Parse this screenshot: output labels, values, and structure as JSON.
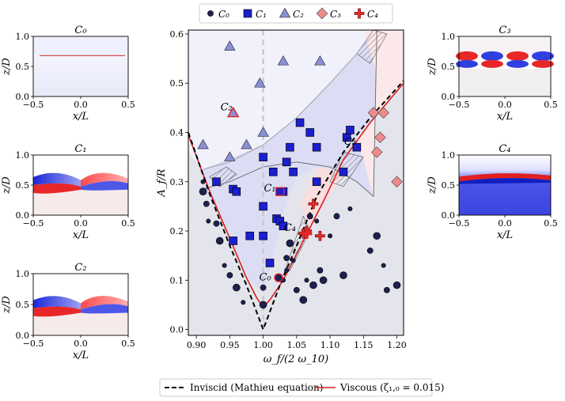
{
  "chart_data": {
    "type": "scatter",
    "main": {
      "xlabel": "ω_f/(2 ω_10)",
      "ylabel": "A_f/R",
      "xlim": [
        0.888,
        1.21
      ],
      "ylim": [
        -0.012,
        0.608
      ],
      "xticks": [
        0.9,
        0.95,
        1.0,
        1.05,
        1.1,
        1.15,
        1.2
      ],
      "xtick_labels": [
        "0.90",
        "0.95",
        "1.00",
        "1.05",
        "1.10",
        "1.15",
        "1.20"
      ],
      "yticks": [
        0.0,
        0.1,
        0.2,
        0.3,
        0.4,
        0.5,
        0.6
      ],
      "ytick_labels": [
        "0.0",
        "0.1",
        "0.2",
        "0.3",
        "0.4",
        "0.5",
        "0.6"
      ],
      "vline_x": 1.0,
      "inviscid_curve": [
        [
          0.888,
          0.4
        ],
        [
          0.92,
          0.275
        ],
        [
          0.95,
          0.17
        ],
        [
          0.975,
          0.09
        ],
        [
          1.0,
          0.0
        ],
        [
          1.025,
          0.09
        ],
        [
          1.05,
          0.17
        ],
        [
          1.08,
          0.27
        ],
        [
          1.12,
          0.36
        ],
        [
          1.16,
          0.43
        ],
        [
          1.21,
          0.505
        ]
      ],
      "viscous_curve": [
        [
          0.888,
          0.395
        ],
        [
          0.92,
          0.28
        ],
        [
          0.95,
          0.185
        ],
        [
          0.975,
          0.105
        ],
        [
          0.99,
          0.065
        ],
        [
          1.0,
          0.045
        ],
        [
          1.01,
          0.06
        ],
        [
          1.03,
          0.1
        ],
        [
          1.06,
          0.18
        ],
        [
          1.09,
          0.26
        ],
        [
          1.12,
          0.345
        ],
        [
          1.16,
          0.42
        ],
        [
          1.21,
          0.5
        ]
      ],
      "region_boundary_C1": [
        [
          0.91,
          0.285
        ],
        [
          0.95,
          0.3
        ],
        [
          1.0,
          0.33
        ],
        [
          1.05,
          0.34
        ],
        [
          1.1,
          0.33
        ],
        [
          1.14,
          0.3
        ],
        [
          1.165,
          0.27
        ]
      ],
      "region_boundary_C2": [
        [
          0.91,
          0.325
        ],
        [
          0.95,
          0.34
        ],
        [
          1.0,
          0.375
        ],
        [
          1.05,
          0.43
        ],
        [
          1.1,
          0.5
        ],
        [
          1.14,
          0.56
        ],
        [
          1.165,
          0.608
        ]
      ],
      "labels": [
        {
          "text": "C₂",
          "x": 0.945,
          "y": 0.445
        },
        {
          "text": "C₁",
          "x": 1.01,
          "y": 0.28
        },
        {
          "text": "C₄",
          "x": 1.04,
          "y": 0.2
        },
        {
          "text": "C₃",
          "x": 1.13,
          "y": 0.375
        },
        {
          "text": "C₀",
          "x": 1.003,
          "y": 0.1
        }
      ],
      "series": [
        {
          "name": "C₀",
          "marker": "circle",
          "color": "#1e2050",
          "points": [
            [
              0.91,
              0.3
            ],
            [
              0.915,
              0.255
            ],
            [
              0.91,
              0.28
            ],
            [
              0.918,
              0.22
            ],
            [
              0.93,
              0.215
            ],
            [
              0.935,
              0.18
            ],
            [
              0.942,
              0.13
            ],
            [
              0.95,
              0.11
            ],
            [
              0.96,
              0.085
            ],
            [
              0.97,
              0.055
            ],
            [
              1.0,
              0.085
            ],
            [
              1.0,
              0.05
            ],
            [
              1.03,
              0.1
            ],
            [
              1.035,
              0.145
            ],
            [
              1.04,
              0.175
            ],
            [
              1.045,
              0.14
            ],
            [
              1.05,
              0.08
            ],
            [
              1.06,
              0.06
            ],
            [
              1.065,
              0.1
            ],
            [
              1.07,
              0.23
            ],
            [
              1.075,
              0.09
            ],
            [
              1.08,
              0.22
            ],
            [
              1.085,
              0.12
            ],
            [
              1.09,
              0.1
            ],
            [
              1.1,
              0.19
            ],
            [
              1.11,
              0.23
            ],
            [
              1.12,
              0.11
            ],
            [
              1.13,
              0.245
            ],
            [
              1.16,
              0.16
            ],
            [
              1.17,
              0.19
            ],
            [
              1.18,
              0.13
            ],
            [
              1.185,
              0.08
            ],
            [
              1.2,
              0.09
            ],
            [
              1.035,
              0.12
            ]
          ]
        },
        {
          "name": "C₁",
          "marker": "square",
          "color": "#1a1fd0",
          "points": [
            [
              0.93,
              0.3
            ],
            [
              0.955,
              0.285
            ],
            [
              0.96,
              0.28
            ],
            [
              0.955,
              0.18
            ],
            [
              0.98,
              0.19
            ],
            [
              1.0,
              0.35
            ],
            [
              1.0,
              0.25
            ],
            [
              1.0,
              0.19
            ],
            [
              1.01,
              0.135
            ],
            [
              1.015,
              0.32
            ],
            [
              1.02,
              0.225
            ],
            [
              1.025,
              0.22
            ],
            [
              1.03,
              0.21
            ],
            [
              1.035,
              0.34
            ],
            [
              1.04,
              0.37
            ],
            [
              1.045,
              0.32
            ],
            [
              1.055,
              0.42
            ],
            [
              1.07,
              0.4
            ],
            [
              1.08,
              0.37
            ],
            [
              1.08,
              0.3
            ],
            [
              1.12,
              0.32
            ],
            [
              1.125,
              0.39
            ],
            [
              1.13,
              0.405
            ],
            [
              1.14,
              0.37
            ],
            [
              1.03,
              0.28
            ]
          ]
        },
        {
          "name": "C₂",
          "marker": "triangle",
          "color": "#8a90d8",
          "points": [
            [
              0.95,
              0.575
            ],
            [
              0.995,
              0.5
            ],
            [
              0.91,
              0.375
            ],
            [
              0.95,
              0.35
            ],
            [
              0.975,
              0.375
            ],
            [
              1.0,
              0.4
            ],
            [
              1.03,
              0.545
            ],
            [
              1.085,
              0.545
            ]
          ]
        },
        {
          "name": "C₃",
          "marker": "diamond",
          "color": "#f08a8a",
          "points": [
            [
              1.18,
              0.44
            ],
            [
              1.175,
              0.39
            ],
            [
              1.17,
              0.36
            ],
            [
              1.2,
              0.3
            ],
            [
              1.165,
              0.44
            ]
          ]
        },
        {
          "name": "C₄",
          "marker": "plus",
          "color": "#e0302e",
          "points": [
            [
              1.075,
              0.255
            ],
            [
              1.065,
              0.2
            ],
            [
              1.085,
              0.19
            ],
            [
              1.06,
              0.195
            ]
          ]
        }
      ],
      "highlights": [
        {
          "series": "C₂",
          "x": 0.955,
          "y": 0.44
        },
        {
          "series": "C₁",
          "x": 1.025,
          "y": 0.28
        },
        {
          "series": "C₀",
          "x": 1.023,
          "y": 0.105
        },
        {
          "series": "C₄",
          "x": 1.065,
          "y": 0.195
        }
      ]
    },
    "legend_top": [
      {
        "text": "C₀",
        "marker": "circle",
        "color": "#1e2050"
      },
      {
        "text": "C₁",
        "marker": "square",
        "color": "#1a1fd0"
      },
      {
        "text": "C₂",
        "marker": "triangle",
        "color": "#8a90d8"
      },
      {
        "text": "C₃",
        "marker": "diamond",
        "color": "#f08a8a"
      },
      {
        "text": "C₄",
        "marker": "plus",
        "color": "#e0302e"
      }
    ],
    "legend_bottom": [
      {
        "text": "Inviscid (Mathieu equation)",
        "style": "dashed",
        "color": "#000000"
      },
      {
        "text": "Viscous (ζ₁,₀ = 0.015)",
        "style": "solid",
        "color": "#d42020"
      }
    ],
    "insets": [
      {
        "title": "C₀",
        "xlabel": "x/L",
        "ylabel": "z/D",
        "xticks": [
          "−0.5",
          "0.0",
          "0.5"
        ],
        "yticks": [
          "0.0",
          "0.5",
          "1.0"
        ],
        "pattern": "flat"
      },
      {
        "title": "C₁",
        "xlabel": "x/L",
        "ylabel": "z/D",
        "xticks": [
          "−0.5",
          "0.0",
          "0.5"
        ],
        "yticks": [
          "0.0",
          "0.5",
          "1.0"
        ],
        "pattern": "wave"
      },
      {
        "title": "C₂",
        "xlabel": "x/L",
        "ylabel": "z/D",
        "xticks": [
          "−0.5",
          "0.0",
          "0.5"
        ],
        "yticks": [
          "0.0",
          "0.5",
          "1.0"
        ],
        "pattern": "wave-lower"
      },
      {
        "title": "C₃",
        "xlabel": "x/L",
        "ylabel": "z/D",
        "xticks": [
          "−0.5",
          "0.0",
          "0.5"
        ],
        "yticks": [
          "0.0",
          "0.5",
          "1.0"
        ],
        "pattern": "multi"
      },
      {
        "title": "C₄",
        "xlabel": "x/L",
        "ylabel": "z/D",
        "xticks": [
          "−0.5",
          "0.0",
          "0.5"
        ],
        "yticks": [
          "0.0",
          "0.5",
          "1.0"
        ],
        "pattern": "blue"
      }
    ]
  }
}
